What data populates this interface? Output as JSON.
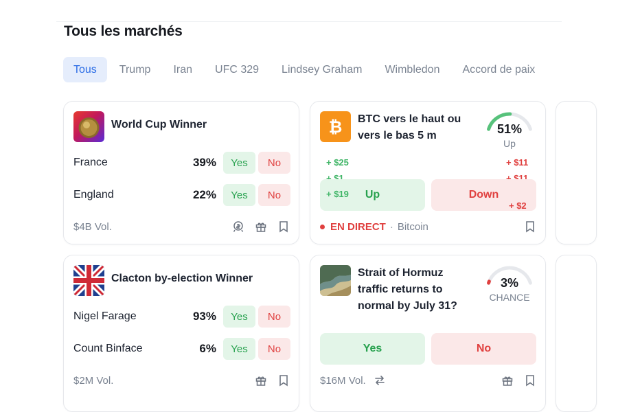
{
  "page": {
    "title": "Tous les marchés"
  },
  "filters": [
    "Tous",
    "Trump",
    "Iran",
    "UFC 329",
    "Lindsey Graham",
    "Wimbledon",
    "Accord de paix"
  ],
  "active_filter_index": 0,
  "cards": {
    "world_cup": {
      "title": "World Cup Winner",
      "thumb_icon": "trophy-icon",
      "outcomes": [
        {
          "name": "France",
          "pct": "39%",
          "yes": "Yes",
          "no": "No"
        },
        {
          "name": "England",
          "pct": "22%",
          "yes": "Yes",
          "no": "No"
        }
      ],
      "volume": "$4B Vol.",
      "icons": [
        "rewards-icon",
        "gift-icon",
        "bookmark-icon"
      ]
    },
    "btc": {
      "title_line1": "BTC vers le haut ou",
      "title_line2": "vers le bas 5 m",
      "thumb_icon": "bitcoin-icon",
      "gauge_value": "51%",
      "gauge_fraction": 0.51,
      "gauge_label": "Up",
      "floats_green": [
        "+ $25",
        "+ $1",
        "+ $19"
      ],
      "floats_red": [
        "+ $11",
        "+ $11",
        "+ $2"
      ],
      "up_label": "Up",
      "down_label": "Down",
      "live_label": "EN DIRECT",
      "separator": "·",
      "category": "Bitcoin",
      "icons": [
        "bookmark-icon"
      ]
    },
    "clacton": {
      "title": "Clacton by-election Winner",
      "thumb_icon": "union-jack-icon",
      "outcomes": [
        {
          "name": "Nigel Farage",
          "pct": "93%",
          "yes": "Yes",
          "no": "No"
        },
        {
          "name": "Count Binface",
          "pct": "6%",
          "yes": "Yes",
          "no": "No"
        }
      ],
      "volume": "$2M Vol.",
      "icons": [
        "gift-icon",
        "bookmark-icon"
      ]
    },
    "hormuz": {
      "title_line1": "Strait of Hormuz",
      "title_line2": "traffic returns to",
      "title_line3": "normal by July 31?",
      "thumb_icon": "map-icon",
      "gauge_value": "3%",
      "gauge_fraction": 0.03,
      "gauge_label": "CHANCE",
      "yes_label": "Yes",
      "no_label": "No",
      "volume": "$16M Vol.",
      "icons": [
        "repeat-icon",
        "gift-icon",
        "bookmark-icon"
      ]
    }
  },
  "colors": {
    "accent_blue": "#2d6ee6",
    "yes_green": "#27a14e",
    "no_red": "#e0403f",
    "bitcoin_orange": "#f7931a"
  }
}
